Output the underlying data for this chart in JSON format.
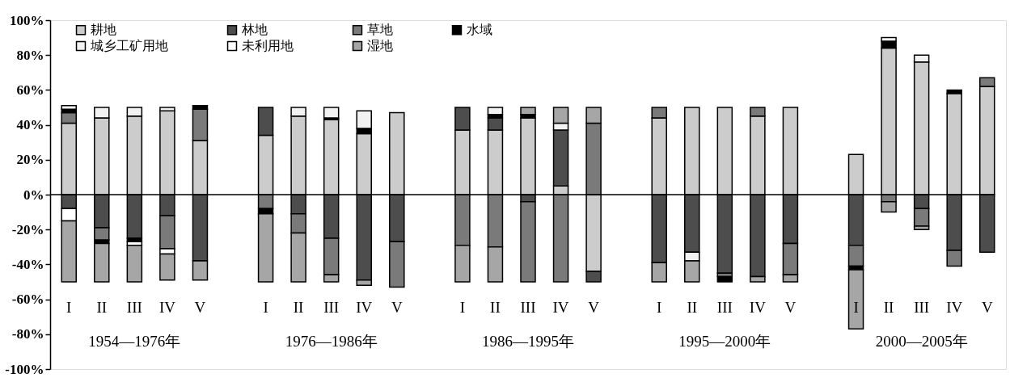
{
  "chart_data": {
    "type": "bar",
    "stacked": true,
    "categories": [
      "I",
      "II",
      "III",
      "IV",
      "V",
      null,
      "I",
      "II",
      "III",
      "IV",
      "V",
      null,
      "I",
      "II",
      "III",
      "IV",
      "V",
      null,
      "I",
      "II",
      "III",
      "IV",
      "V",
      null,
      "I",
      "II",
      "III",
      "IV",
      "V"
    ],
    "series": [
      {
        "name": "耕地",
        "color": "#cccccc",
        "values": [
          41,
          44,
          45,
          48,
          31,
          null,
          34,
          45,
          43,
          35,
          47,
          null,
          37,
          37,
          44,
          5,
          -44,
          null,
          44,
          50,
          50,
          45,
          50,
          null,
          23,
          84,
          76,
          58,
          62
        ]
      },
      {
        "name": "林地",
        "color": "#4d4d4d",
        "values": [
          -8,
          -19,
          -25,
          -12,
          -38,
          null,
          16,
          -11,
          -25,
          -49,
          -27,
          null,
          13,
          7,
          -4,
          32,
          -6,
          null,
          -39,
          -33,
          -45,
          -47,
          -28,
          null,
          -29,
          null,
          -8,
          -32,
          -33
        ]
      },
      {
        "name": "草地",
        "color": "#7a7a7a",
        "values": [
          6,
          -7,
          null,
          -19,
          18,
          null,
          -8,
          -11,
          -21,
          null,
          -26,
          null,
          -29,
          -30,
          -46,
          -50,
          41,
          null,
          6,
          null,
          -2,
          5,
          -18,
          null,
          -12,
          -4,
          -10,
          -9,
          5
        ]
      },
      {
        "name": "水域",
        "color": "#000000",
        "values": [
          2,
          -2,
          -2,
          null,
          2,
          null,
          -3,
          null,
          1,
          3,
          null,
          null,
          null,
          2,
          2,
          null,
          null,
          null,
          null,
          null,
          -3,
          null,
          null,
          null,
          -2,
          4,
          null,
          2,
          null
        ]
      },
      {
        "name": "城乡工矿用地",
        "color": "#f2f2f2",
        "values": [
          2,
          6,
          5,
          2,
          null,
          null,
          null,
          5,
          6,
          10,
          null,
          null,
          null,
          4,
          null,
          4,
          null,
          null,
          null,
          -5,
          null,
          null,
          null,
          null,
          null,
          null,
          4,
          null,
          null
        ]
      },
      {
        "name": "未利用地",
        "color": "#ffffff",
        "values": [
          -7,
          null,
          -2,
          -3,
          null,
          null,
          null,
          null,
          null,
          null,
          null,
          null,
          null,
          null,
          null,
          null,
          null,
          null,
          null,
          null,
          null,
          null,
          null,
          null,
          null,
          2,
          null,
          null,
          null
        ]
      },
      {
        "name": "湿地",
        "color": "#a6a6a6",
        "values": [
          -35,
          -22,
          -21,
          -15,
          -11,
          null,
          -39,
          -28,
          -4,
          -3,
          null,
          null,
          -21,
          -20,
          4,
          9,
          9,
          null,
          -11,
          -12,
          null,
          -3,
          -4,
          null,
          -34,
          -6,
          -2,
          null,
          null
        ]
      }
    ],
    "ylim": [
      -100,
      100
    ],
    "yticks": [
      {
        "value": -100,
        "label": "-100%"
      },
      {
        "value": -80,
        "label": "-80%"
      },
      {
        "value": -60,
        "label": "-60%"
      },
      {
        "value": -40,
        "label": "-40%"
      },
      {
        "value": -20,
        "label": "-20%"
      },
      {
        "value": 0,
        "label": "0%"
      },
      {
        "value": 20,
        "label": "20%"
      },
      {
        "value": 40,
        "label": "40%"
      },
      {
        "value": 60,
        "label": "60%"
      },
      {
        "value": 80,
        "label": "80%"
      },
      {
        "value": 100,
        "label": "100%"
      }
    ],
    "ref_lines": [
      {
        "axis": "y",
        "value": 0
      }
    ],
    "annotations": [
      "1954—1976年",
      "1976—1986年",
      "1986—1995年",
      "1995—2000年",
      "2000—2005年"
    ],
    "grid": false,
    "legend": "top left"
  }
}
